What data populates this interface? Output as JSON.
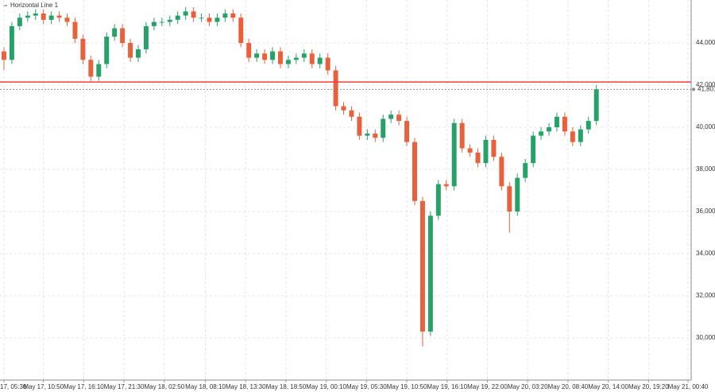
{
  "chart_data": {
    "type": "candlestick",
    "annotation": "Horizontal Line 1",
    "horizontal_line": 42150,
    "horizontal_line_color": "#f23c3c",
    "last_price": {
      "value": 41801,
      "label": "41,801"
    },
    "up_color": "#26a269",
    "down_color": "#e8603c",
    "grid": true,
    "candles": {
      "open": [
        43600,
        43200,
        44800,
        45200,
        45300,
        45400,
        45100,
        45300,
        45200,
        45000,
        44200,
        43200,
        42400,
        43000,
        44300,
        44700,
        44000,
        43300,
        43700,
        44800,
        45000,
        45000,
        45100,
        45300,
        45500,
        45200,
        45200,
        45000,
        45200,
        45400,
        45200,
        44000,
        43300,
        43500,
        43200,
        43600,
        43000,
        43200,
        43300,
        43500,
        43000,
        43300,
        42700,
        41000,
        40800,
        40500,
        39600,
        39700,
        39500,
        40400,
        40600,
        40300,
        39300,
        36500,
        30300,
        35800,
        37300,
        37200,
        40200,
        39000,
        38800,
        38300,
        39400,
        38600,
        37200,
        36000,
        37600,
        38300,
        39600,
        39800,
        40000,
        40500,
        39800,
        39300,
        39900,
        40300
      ],
      "high": [
        43800,
        45000,
        45400,
        45500,
        45600,
        45600,
        45500,
        45500,
        45400,
        45200,
        44400,
        43400,
        43200,
        44500,
        44900,
        44900,
        44200,
        43900,
        45000,
        45200,
        45200,
        45300,
        45500,
        45700,
        45700,
        45400,
        45400,
        45400,
        45600,
        45600,
        45400,
        44200,
        43700,
        43700,
        43800,
        43800,
        43400,
        43500,
        43700,
        43700,
        43500,
        43500,
        42900,
        41200,
        41000,
        40700,
        39900,
        39900,
        40600,
        40800,
        40800,
        40500,
        39500,
        36700,
        36000,
        37500,
        37500,
        40400,
        40400,
        39200,
        39000,
        39600,
        39600,
        38800,
        37400,
        37800,
        38500,
        39800,
        40000,
        40200,
        40700,
        40700,
        40000,
        40100,
        40500,
        42000
      ],
      "low": [
        42700,
        43000,
        44600,
        45000,
        45100,
        44900,
        44900,
        45000,
        44800,
        44000,
        43000,
        42200,
        42200,
        42800,
        44100,
        43800,
        43100,
        43100,
        43500,
        44600,
        44800,
        44800,
        44900,
        45100,
        45000,
        45000,
        44800,
        44800,
        45000,
        45000,
        43800,
        43100,
        43100,
        43000,
        43000,
        42800,
        42800,
        43000,
        43100,
        42800,
        42800,
        42500,
        40800,
        40600,
        40300,
        39400,
        39400,
        39300,
        39300,
        40200,
        40100,
        39100,
        36300,
        29600,
        30100,
        35600,
        37000,
        37000,
        38800,
        38600,
        38100,
        38100,
        38400,
        37000,
        35000,
        35800,
        37400,
        38100,
        39400,
        39600,
        39800,
        39600,
        39100,
        39100,
        39700,
        40100
      ],
      "close": [
        43200,
        44800,
        45200,
        45300,
        45400,
        45100,
        45300,
        45200,
        45000,
        44200,
        43200,
        42400,
        43000,
        44300,
        44700,
        44000,
        43300,
        43700,
        44800,
        45000,
        45000,
        45100,
        45300,
        45500,
        45200,
        45200,
        45000,
        45200,
        45400,
        45200,
        44000,
        43300,
        43500,
        43200,
        43600,
        43000,
        43200,
        43300,
        43500,
        43000,
        43300,
        42700,
        41000,
        40800,
        40500,
        39600,
        39700,
        39500,
        40400,
        40600,
        40300,
        39300,
        36500,
        30300,
        35800,
        37300,
        37200,
        40200,
        39000,
        38800,
        38300,
        39400,
        38600,
        37200,
        36000,
        37600,
        38300,
        39600,
        39800,
        40000,
        40500,
        39800,
        39300,
        39900,
        40300,
        41800
      ]
    },
    "xlim": [
      -0.5,
      87
    ],
    "xticks": [
      {
        "value": 0,
        "label": "17, 05:30"
      },
      {
        "value": 5,
        "label": "May 17, 10:50"
      },
      {
        "value": 10.1,
        "label": "May 17, 16:10"
      },
      {
        "value": 15.2,
        "label": "May 17, 21:30"
      },
      {
        "value": 20.3,
        "label": "May 18, 02:50"
      },
      {
        "value": 25.5,
        "label": "May 18, 08:10"
      },
      {
        "value": 30.6,
        "label": "May 18, 13:30"
      },
      {
        "value": 35.7,
        "label": "May 18, 18:50"
      },
      {
        "value": 40.8,
        "label": "May 19, 00:10"
      },
      {
        "value": 45.9,
        "label": "May 19, 05:30"
      },
      {
        "value": 51,
        "label": "May 19, 10:50"
      },
      {
        "value": 56.1,
        "label": "May 19, 16:10"
      },
      {
        "value": 61.2,
        "label": "May 19, 22:00"
      },
      {
        "value": 66.3,
        "label": "May 20, 03:20"
      },
      {
        "value": 71.4,
        "label": "May 20, 08:40"
      },
      {
        "value": 76.5,
        "label": "May 20, 14:00"
      },
      {
        "value": 81.6,
        "label": "May 20, 19:20"
      },
      {
        "value": 86.6,
        "label": "May 21, 00:40"
      }
    ],
    "ylim": [
      28000,
      46040
    ],
    "yticks": [
      {
        "value": 30000,
        "label": "30,000"
      },
      {
        "value": 32000,
        "label": "32,000"
      },
      {
        "value": 34000,
        "label": "34,000"
      },
      {
        "value": 36000,
        "label": "36,000"
      },
      {
        "value": 38000,
        "label": "38,000"
      },
      {
        "value": 40000,
        "label": "40,000"
      },
      {
        "value": 42000,
        "label": "42,000"
      },
      {
        "value": 44000,
        "label": "44,000"
      }
    ]
  }
}
